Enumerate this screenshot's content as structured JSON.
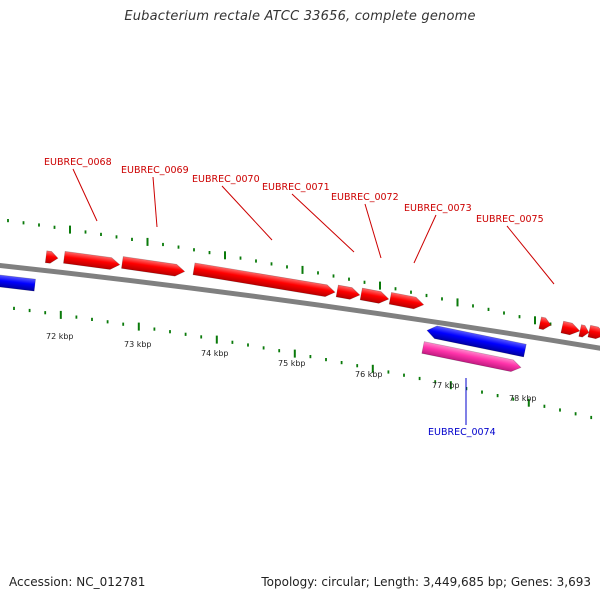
{
  "title": "Eubacterium rectale ATCC 33656, complete genome",
  "footer": {
    "accession": "Accession: NC_012781",
    "summary": "Topology: circular; Length: 3,449,685 bp; Genes: 3,693"
  },
  "colors": {
    "forward_gene": "#ff0000",
    "reverse_gene": "#0000ff",
    "pink_feature": "#ff33aa",
    "backbone": "#808080",
    "tick": "#0a7a0a",
    "forward_label": "#cc0000",
    "reverse_label": "#0000cc"
  },
  "scale_labels": [
    "72 kbp",
    "73 kbp",
    "74 kbp",
    "75 kbp",
    "76 kbp",
    "77 kbp",
    "78 kbp"
  ],
  "gene_labels": [
    {
      "name": "EUBREC_0068",
      "strand": "forward"
    },
    {
      "name": "EUBREC_0069",
      "strand": "forward"
    },
    {
      "name": "EUBREC_0070",
      "strand": "forward"
    },
    {
      "name": "EUBREC_0071",
      "strand": "forward"
    },
    {
      "name": "EUBREC_0072",
      "strand": "forward"
    },
    {
      "name": "EUBREC_0073",
      "strand": "forward"
    },
    {
      "name": "EUBREC_0075",
      "strand": "forward"
    },
    {
      "name": "EUBREC_0074",
      "strand": "reverse"
    }
  ]
}
